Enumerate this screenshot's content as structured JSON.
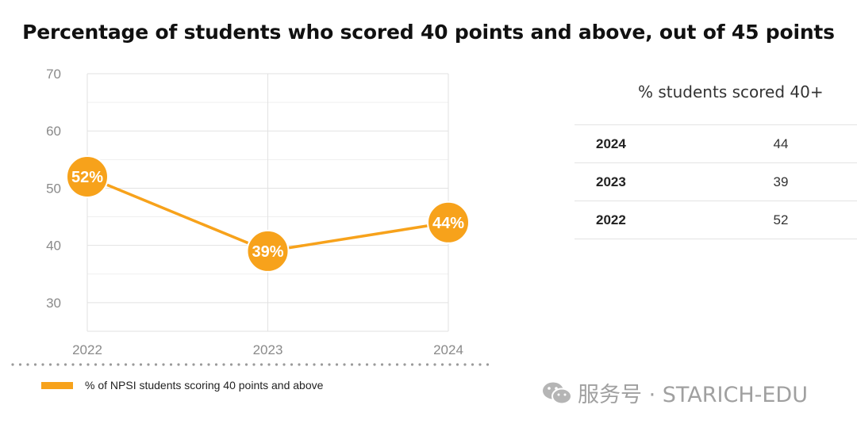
{
  "title": "Percentage of students who scored 40 points and above, out of 45 points",
  "chart_data": {
    "type": "line",
    "title": "Percentage of students who scored 40 points and above, out of 45 points",
    "x": [
      "2022",
      "2023",
      "2024"
    ],
    "series": [
      {
        "name": "% of NPSI students scoring 40 points and above",
        "values": [
          52,
          39,
          44
        ],
        "data_labels": [
          "52%",
          "39%",
          "44%"
        ],
        "color": "#f7a21b"
      }
    ],
    "ylim": [
      25,
      70
    ],
    "yticks": [
      "30",
      "40",
      "50",
      "60",
      "70"
    ],
    "grid": true,
    "legend_position": "bottom-left"
  },
  "legend": {
    "label": "% of NPSI students scoring 40 points and above",
    "color": "#f7a21b"
  },
  "table": {
    "header": "% students scored 40+",
    "rows": [
      {
        "year": "2024",
        "value": "44"
      },
      {
        "year": "2023",
        "value": "39"
      },
      {
        "year": "2022",
        "value": "52"
      }
    ]
  },
  "watermark": {
    "icon": "wechat-icon",
    "text": "服务号 · STARICH-EDU"
  }
}
